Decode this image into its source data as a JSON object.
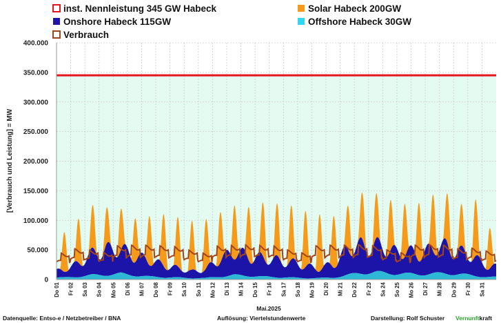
{
  "chart_data": {
    "type": "area",
    "title": "",
    "ylabel": "[Verbrauch und Leistung] = MW",
    "xlabel": "Mai.2025",
    "ylim": [
      0,
      400000
    ],
    "yticks": [
      "0",
      "50.000",
      "100.000",
      "150.000",
      "200.000",
      "250.000",
      "300.000",
      "350.000",
      "400.000"
    ],
    "days": [
      "Do 01",
      "Fr 02",
      "Sa 03",
      "So 04",
      "Mo 05",
      "Di 06",
      "Mi 07",
      "Do 08",
      "Fr 09",
      "Sa 10",
      "So 11",
      "Mo 12",
      "Di 13",
      "Mi 14",
      "Do 15",
      "Fr 16",
      "Sa 17",
      "So 18",
      "Mo 19",
      "Di 20",
      "Mi 21",
      "Do 22",
      "Fr 23",
      "Sa 24",
      "So 25",
      "Mo 26",
      "Di 27",
      "Mi 28",
      "Do 29",
      "Fr 30",
      "Sa 31"
    ],
    "capacity_line": {
      "name": "inst. Nennleistung 345 GW Habeck",
      "value": 345000,
      "color": "#e8141c"
    },
    "legend": [
      {
        "name": "inst. Nennleistung 345 GW Habeck",
        "color": "#e8141c",
        "style": "outline"
      },
      {
        "name": "Solar Habeck 200GW",
        "color": "#f59a1b",
        "style": "fill"
      },
      {
        "name": "Onshore Habeck 115GW",
        "color": "#1c13a8",
        "style": "fill"
      },
      {
        "name": "Offshore Habeck 30GW",
        "color": "#33d6f0",
        "style": "fill"
      },
      {
        "name": "Verbrauch",
        "color": "#a0461a",
        "style": "outline"
      }
    ],
    "series": [
      {
        "name": "Offshore Habeck 30GW",
        "color": "#2db9d6",
        "values": [
          4000,
          6000,
          9000,
          10000,
          12000,
          9000,
          6000,
          5000,
          4000,
          3000,
          3000,
          6000,
          9000,
          8000,
          6000,
          5000,
          4000,
          3000,
          3000,
          4000,
          9000,
          14000,
          15000,
          13000,
          12000,
          11000,
          12000,
          13000,
          11000,
          8000,
          5000
        ]
      },
      {
        "name": "Onshore Habeck 115GW",
        "color": "#1c13a8",
        "values": [
          15000,
          30000,
          45000,
          58000,
          52000,
          45000,
          35000,
          28000,
          20000,
          15000,
          18000,
          40000,
          50000,
          45000,
          40000,
          38000,
          33000,
          28000,
          20000,
          30000,
          55000,
          62000,
          58000,
          52000,
          48000,
          45000,
          55000,
          60000,
          48000,
          40000,
          22000
        ]
      },
      {
        "name": "Solar Habeck 200GW",
        "color": "#f59a1b",
        "values": [
          75000,
          92000,
          105000,
          98000,
          100000,
          92000,
          98000,
          102000,
          97000,
          93000,
          95000,
          103000,
          112000,
          110000,
          115000,
          113000,
          112000,
          108000,
          105000,
          100000,
          105000,
          120000,
          118000,
          115000,
          113000,
          118000,
          125000,
          121000,
          105000,
          120000,
          80000
        ]
      },
      {
        "name": "Verbrauch",
        "color": "#a0461a",
        "values": [
          45000,
          52000,
          50000,
          46000,
          57000,
          58000,
          58000,
          57000,
          56000,
          50000,
          45000,
          57000,
          58000,
          59000,
          58000,
          57000,
          50000,
          45000,
          57000,
          58000,
          58000,
          59000,
          57000,
          50000,
          45000,
          58000,
          59000,
          58000,
          52000,
          53000,
          48000
        ]
      }
    ]
  },
  "footer": {
    "source": "Datenquelle: Entso-e  / Netzbetreiber / BNA",
    "resolution": "Auflösung: Viertelstundenwerte",
    "author": "Darstellung:   Rolf Schuster",
    "brand_part1": "Vernunft",
    "brand_part2": "kraft",
    "brand_color": "#2ba52b"
  }
}
